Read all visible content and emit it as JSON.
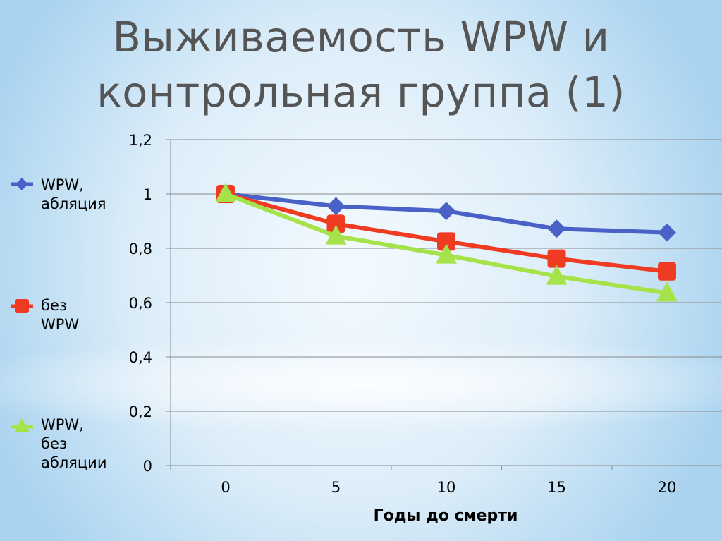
{
  "title": {
    "line1": "Выживаемость WPW и",
    "line2": "контрольная группа (1)"
  },
  "chart_data": {
    "type": "line",
    "xlabel": "Годы до смерти",
    "ylabel": "",
    "x": [
      0,
      5,
      10,
      15,
      20
    ],
    "x_tick_labels": [
      "0",
      "5",
      "10",
      "15",
      "20"
    ],
    "ylim": [
      0,
      1.2
    ],
    "y_ticks": [
      0,
      0.2,
      0.4,
      0.6,
      0.8,
      1,
      1.2
    ],
    "y_tick_labels": [
      "0",
      "0,2",
      "0,4",
      "0,6",
      "0,8",
      "1",
      "1,2"
    ],
    "grid": true,
    "legend_position": "left",
    "series": [
      {
        "name": "WPW,\nабляция",
        "marker": "diamond",
        "color": "#4a62c8",
        "values": [
          1.0,
          0.955,
          0.937,
          0.872,
          0.858
        ]
      },
      {
        "name": "без WPW",
        "marker": "square",
        "color": "#ef3b22",
        "values": [
          1.0,
          0.89,
          0.825,
          0.762,
          0.715
        ]
      },
      {
        "name": "WPW,\nбез\nабляции",
        "marker": "triangle",
        "color": "#a6e24a",
        "values": [
          1.0,
          0.845,
          0.775,
          0.697,
          0.635
        ]
      }
    ]
  }
}
